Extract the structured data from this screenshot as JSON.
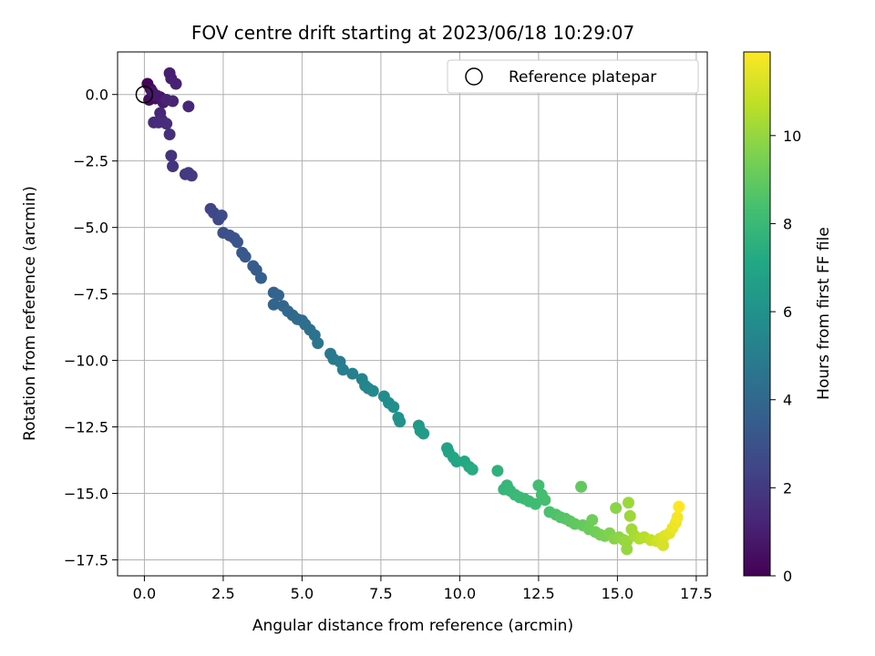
{
  "chart_data": {
    "type": "scatter",
    "title": "FOV centre drift starting at 2023/06/18 10:29:07",
    "xlabel": "Angular distance from reference (arcmin)",
    "ylabel": "Rotation from reference (arcmin)",
    "xlim": [
      -0.85,
      17.85
    ],
    "ylim": [
      -18.1,
      1.6
    ],
    "xticks": [
      0.0,
      2.5,
      5.0,
      7.5,
      10.0,
      12.5,
      15.0,
      17.5
    ],
    "xtick_labels": [
      "0.0",
      "2.5",
      "5.0",
      "7.5",
      "10.0",
      "12.5",
      "15.0",
      "17.5"
    ],
    "yticks": [
      0.0,
      -2.5,
      -5.0,
      -7.5,
      -10.0,
      -12.5,
      -15.0,
      -17.5
    ],
    "ytick_labels": [
      "0.0",
      "−2.5",
      "−5.0",
      "−7.5",
      "−10.0",
      "−12.5",
      "−15.0",
      "−17.5"
    ],
    "grid": true,
    "legend": {
      "position": "top-right",
      "entries": [
        "Reference platepar"
      ]
    },
    "reference_point": {
      "x": 0.0,
      "y": 0.0
    },
    "colorbar": {
      "label": "Hours from first FF file",
      "range": [
        0,
        11.9
      ],
      "ticks": [
        0,
        2,
        4,
        6,
        8,
        10
      ],
      "tick_labels": [
        "0",
        "2",
        "4",
        "6",
        "8",
        "10"
      ],
      "colormap": "viridis"
    },
    "points": [
      {
        "x": 0.1,
        "y": 0.4,
        "c": 0.1
      },
      {
        "x": 0.2,
        "y": 0.2,
        "c": 0.2
      },
      {
        "x": 0.3,
        "y": 0.0,
        "c": 0.3
      },
      {
        "x": 0.15,
        "y": -0.2,
        "c": 0.4
      },
      {
        "x": 0.35,
        "y": -0.15,
        "c": 0.5
      },
      {
        "x": 0.5,
        "y": -0.1,
        "c": 0.6
      },
      {
        "x": 0.25,
        "y": 0.1,
        "c": 0.7
      },
      {
        "x": 0.4,
        "y": -0.05,
        "c": 0.8
      },
      {
        "x": 0.6,
        "y": -0.3,
        "c": 0.9
      },
      {
        "x": 0.8,
        "y": 0.8,
        "c": 1.0
      },
      {
        "x": 0.85,
        "y": 0.6,
        "c": 1.05
      },
      {
        "x": 1.0,
        "y": 0.4,
        "c": 1.1
      },
      {
        "x": 0.7,
        "y": -0.2,
        "c": 1.15
      },
      {
        "x": 0.9,
        "y": -0.25,
        "c": 1.2
      },
      {
        "x": 1.4,
        "y": -0.45,
        "c": 1.3
      },
      {
        "x": 0.5,
        "y": -0.7,
        "c": 1.35
      },
      {
        "x": 0.55,
        "y": -0.95,
        "c": 1.4
      },
      {
        "x": 0.3,
        "y": -1.05,
        "c": 1.45
      },
      {
        "x": 0.45,
        "y": -1.05,
        "c": 1.5
      },
      {
        "x": 0.7,
        "y": -1.1,
        "c": 1.55
      },
      {
        "x": 0.8,
        "y": -1.5,
        "c": 1.6
      },
      {
        "x": 0.85,
        "y": -2.3,
        "c": 1.7
      },
      {
        "x": 0.9,
        "y": -2.7,
        "c": 1.8
      },
      {
        "x": 1.3,
        "y": -3.0,
        "c": 1.9
      },
      {
        "x": 1.4,
        "y": -2.95,
        "c": 2.0
      },
      {
        "x": 1.5,
        "y": -3.05,
        "c": 2.1
      },
      {
        "x": 2.1,
        "y": -4.3,
        "c": 2.4
      },
      {
        "x": 2.2,
        "y": -4.45,
        "c": 2.5
      },
      {
        "x": 2.35,
        "y": -4.7,
        "c": 2.6
      },
      {
        "x": 2.45,
        "y": -4.55,
        "c": 2.7
      },
      {
        "x": 2.5,
        "y": -5.2,
        "c": 2.85
      },
      {
        "x": 2.7,
        "y": -5.3,
        "c": 2.95
      },
      {
        "x": 2.85,
        "y": -5.4,
        "c": 3.05
      },
      {
        "x": 2.95,
        "y": -5.55,
        "c": 3.15
      },
      {
        "x": 3.1,
        "y": -5.95,
        "c": 3.25
      },
      {
        "x": 3.2,
        "y": -6.1,
        "c": 3.3
      },
      {
        "x": 3.45,
        "y": -6.45,
        "c": 3.4
      },
      {
        "x": 3.55,
        "y": -6.6,
        "c": 3.45
      },
      {
        "x": 3.7,
        "y": -6.9,
        "c": 3.55
      },
      {
        "x": 4.1,
        "y": -7.45,
        "c": 3.7
      },
      {
        "x": 4.25,
        "y": -7.55,
        "c": 3.8
      },
      {
        "x": 4.1,
        "y": -7.9,
        "c": 3.85
      },
      {
        "x": 4.4,
        "y": -7.95,
        "c": 3.9
      },
      {
        "x": 4.55,
        "y": -8.15,
        "c": 4.0
      },
      {
        "x": 4.7,
        "y": -8.3,
        "c": 4.05
      },
      {
        "x": 4.85,
        "y": -8.45,
        "c": 4.1
      },
      {
        "x": 5.0,
        "y": -8.5,
        "c": 4.2
      },
      {
        "x": 5.1,
        "y": -8.65,
        "c": 4.3
      },
      {
        "x": 5.25,
        "y": -8.85,
        "c": 4.4
      },
      {
        "x": 5.4,
        "y": -9.05,
        "c": 4.5
      },
      {
        "x": 5.5,
        "y": -9.35,
        "c": 4.6
      },
      {
        "x": 5.9,
        "y": -9.75,
        "c": 4.75
      },
      {
        "x": 6.0,
        "y": -9.95,
        "c": 4.85
      },
      {
        "x": 6.2,
        "y": -10.05,
        "c": 4.95
      },
      {
        "x": 6.3,
        "y": -10.35,
        "c": 5.05
      },
      {
        "x": 6.6,
        "y": -10.5,
        "c": 5.15
      },
      {
        "x": 6.9,
        "y": -10.7,
        "c": 5.3
      },
      {
        "x": 7.0,
        "y": -10.95,
        "c": 5.4
      },
      {
        "x": 7.1,
        "y": -11.05,
        "c": 5.45
      },
      {
        "x": 7.25,
        "y": -11.15,
        "c": 5.55
      },
      {
        "x": 7.6,
        "y": -11.35,
        "c": 5.7
      },
      {
        "x": 7.75,
        "y": -11.6,
        "c": 5.8
      },
      {
        "x": 7.9,
        "y": -11.75,
        "c": 5.9
      },
      {
        "x": 8.05,
        "y": -12.15,
        "c": 6.0
      },
      {
        "x": 8.1,
        "y": -12.3,
        "c": 6.05
      },
      {
        "x": 8.7,
        "y": -12.45,
        "c": 6.35
      },
      {
        "x": 8.75,
        "y": -12.65,
        "c": 6.45
      },
      {
        "x": 8.85,
        "y": -12.75,
        "c": 6.5
      },
      {
        "x": 9.6,
        "y": -13.3,
        "c": 6.85
      },
      {
        "x": 9.65,
        "y": -13.45,
        "c": 6.9
      },
      {
        "x": 9.8,
        "y": -13.65,
        "c": 7.0
      },
      {
        "x": 9.9,
        "y": -13.8,
        "c": 7.05
      },
      {
        "x": 10.15,
        "y": -13.8,
        "c": 7.15
      },
      {
        "x": 10.3,
        "y": -14.0,
        "c": 7.2
      },
      {
        "x": 10.4,
        "y": -14.1,
        "c": 7.3
      },
      {
        "x": 11.2,
        "y": -14.15,
        "c": 7.6
      },
      {
        "x": 11.4,
        "y": -14.85,
        "c": 7.8
      },
      {
        "x": 11.5,
        "y": -14.7,
        "c": 7.85
      },
      {
        "x": 11.6,
        "y": -14.9,
        "c": 7.9
      },
      {
        "x": 11.75,
        "y": -15.05,
        "c": 7.95
      },
      {
        "x": 11.9,
        "y": -15.15,
        "c": 8.0
      },
      {
        "x": 12.05,
        "y": -15.2,
        "c": 8.05
      },
      {
        "x": 12.2,
        "y": -15.3,
        "c": 8.1
      },
      {
        "x": 12.4,
        "y": -15.4,
        "c": 8.2
      },
      {
        "x": 12.5,
        "y": -14.7,
        "c": 8.25
      },
      {
        "x": 12.6,
        "y": -15.05,
        "c": 8.3
      },
      {
        "x": 12.7,
        "y": -15.25,
        "c": 8.35
      },
      {
        "x": 12.85,
        "y": -15.7,
        "c": 8.45
      },
      {
        "x": 13.05,
        "y": -15.8,
        "c": 8.55
      },
      {
        "x": 13.2,
        "y": -15.9,
        "c": 8.65
      },
      {
        "x": 13.35,
        "y": -15.95,
        "c": 8.75
      },
      {
        "x": 13.5,
        "y": -16.05,
        "c": 8.85
      },
      {
        "x": 13.65,
        "y": -16.15,
        "c": 8.95
      },
      {
        "x": 13.85,
        "y": -14.75,
        "c": 9.0
      },
      {
        "x": 13.9,
        "y": -16.2,
        "c": 9.05
      },
      {
        "x": 14.1,
        "y": -16.35,
        "c": 9.2
      },
      {
        "x": 14.2,
        "y": -16.0,
        "c": 9.25
      },
      {
        "x": 14.3,
        "y": -16.45,
        "c": 9.3
      },
      {
        "x": 14.45,
        "y": -16.55,
        "c": 9.4
      },
      {
        "x": 14.6,
        "y": -16.6,
        "c": 9.5
      },
      {
        "x": 14.75,
        "y": -16.5,
        "c": 9.6
      },
      {
        "x": 14.9,
        "y": -16.7,
        "c": 9.7
      },
      {
        "x": 14.95,
        "y": -15.55,
        "c": 9.8
      },
      {
        "x": 15.05,
        "y": -16.65,
        "c": 9.85
      },
      {
        "x": 15.2,
        "y": -16.75,
        "c": 9.95
      },
      {
        "x": 15.3,
        "y": -16.8,
        "c": 10.05
      },
      {
        "x": 15.35,
        "y": -15.35,
        "c": 10.1
      },
      {
        "x": 15.4,
        "y": -15.85,
        "c": 10.15
      },
      {
        "x": 15.45,
        "y": -16.35,
        "c": 10.2
      },
      {
        "x": 15.55,
        "y": -16.6,
        "c": 10.3
      },
      {
        "x": 15.7,
        "y": -16.7,
        "c": 10.45
      },
      {
        "x": 15.85,
        "y": -16.65,
        "c": 10.6
      },
      {
        "x": 16.05,
        "y": -16.75,
        "c": 10.8
      },
      {
        "x": 16.25,
        "y": -16.8,
        "c": 11.0
      },
      {
        "x": 16.35,
        "y": -16.7,
        "c": 11.1
      },
      {
        "x": 16.5,
        "y": -16.6,
        "c": 11.25
      },
      {
        "x": 16.65,
        "y": -16.5,
        "c": 11.4
      },
      {
        "x": 16.75,
        "y": -16.3,
        "c": 11.55
      },
      {
        "x": 16.85,
        "y": -16.1,
        "c": 11.65
      },
      {
        "x": 16.9,
        "y": -15.9,
        "c": 11.75
      },
      {
        "x": 16.95,
        "y": -15.5,
        "c": 11.9
      },
      {
        "x": 15.3,
        "y": -17.1,
        "c": 10.0
      },
      {
        "x": 16.45,
        "y": -16.95,
        "c": 11.2
      }
    ]
  }
}
